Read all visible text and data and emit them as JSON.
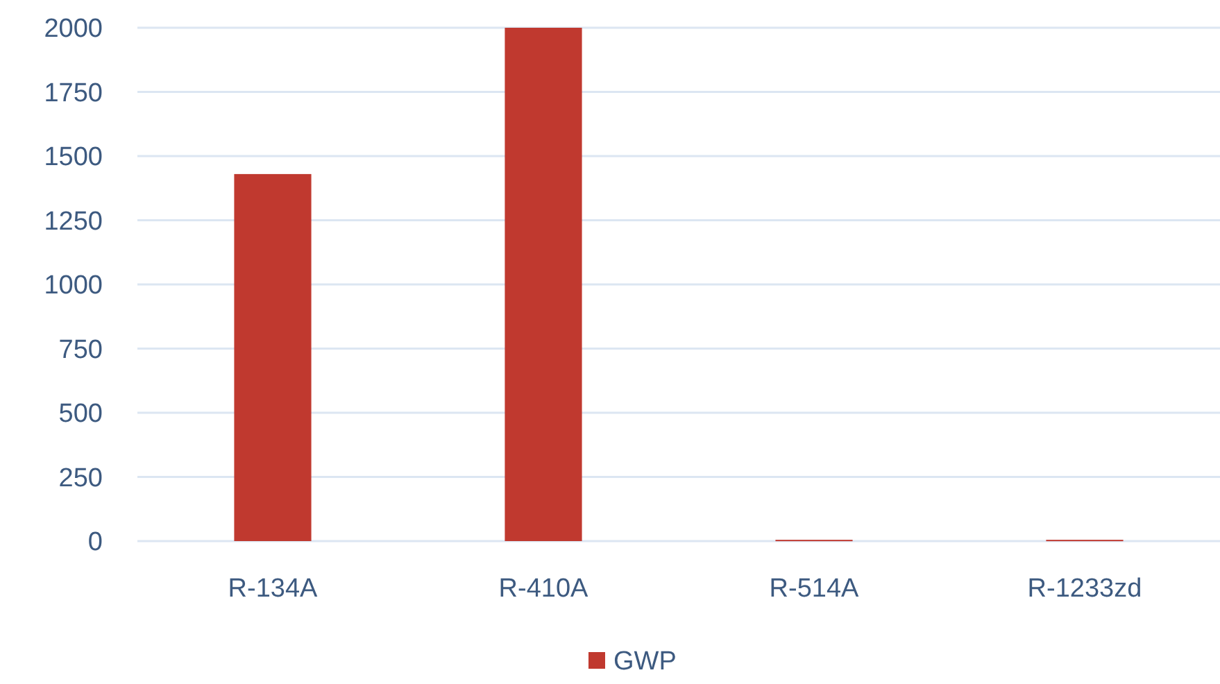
{
  "chart_data": {
    "type": "bar",
    "categories": [
      "R-134A",
      "R-410A",
      "R-514A",
      "R-1233zd"
    ],
    "series": [
      {
        "name": "GWP",
        "color": "#c0392f",
        "values": [
          1430,
          2000,
          5,
          5
        ]
      }
    ],
    "ylim": [
      0,
      2000
    ],
    "yticks": [
      0,
      250,
      500,
      750,
      1000,
      1250,
      1500,
      1750,
      2000
    ],
    "grid": "y",
    "legend": "bottom"
  }
}
